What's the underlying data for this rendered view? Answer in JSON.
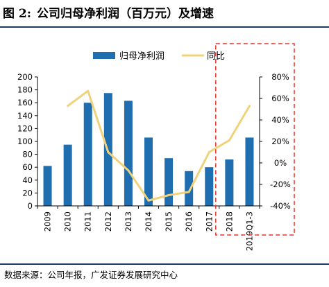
{
  "figure": {
    "number": "图 2:",
    "title": "公司归母净利润（百万元）及增速",
    "source": "数据来源：公司年报，广发证券发展研究中心"
  },
  "chart_data": {
    "type": "bar",
    "categories": [
      "2009",
      "2010",
      "2011",
      "2012",
      "2013",
      "2014",
      "2015",
      "2016",
      "2017",
      "2018",
      "2019Q1-3"
    ],
    "series": [
      {
        "name": "归母净利润",
        "type": "bar",
        "axis": "left",
        "color": "#1f6fb0",
        "values": [
          62,
          95,
          160,
          175,
          163,
          106,
          74,
          54,
          60,
          72,
          106
        ]
      },
      {
        "name": "同比",
        "type": "line",
        "axis": "right",
        "color": "#f0d27a",
        "unit": "%",
        "values": [
          null,
          53,
          67,
          10,
          -7,
          -35,
          -30,
          -27,
          10,
          21,
          53
        ]
      }
    ],
    "y_left": {
      "min": 0,
      "max": 200,
      "ticks": [
        0,
        20,
        40,
        60,
        80,
        100,
        120,
        140,
        160,
        180,
        200
      ]
    },
    "y_right": {
      "min": -40,
      "max": 80,
      "ticks": [
        -40,
        -20,
        0,
        20,
        40,
        60,
        80
      ],
      "tick_labels": [
        "-40%",
        "-20%",
        "0%",
        "20%",
        "40%",
        "60%",
        "80%"
      ]
    },
    "legend_position": "top",
    "highlight": {
      "from_category": "2018",
      "to_category": "2019Q1-3",
      "style": "dashed",
      "color": "#e8332a"
    },
    "grid": false
  }
}
